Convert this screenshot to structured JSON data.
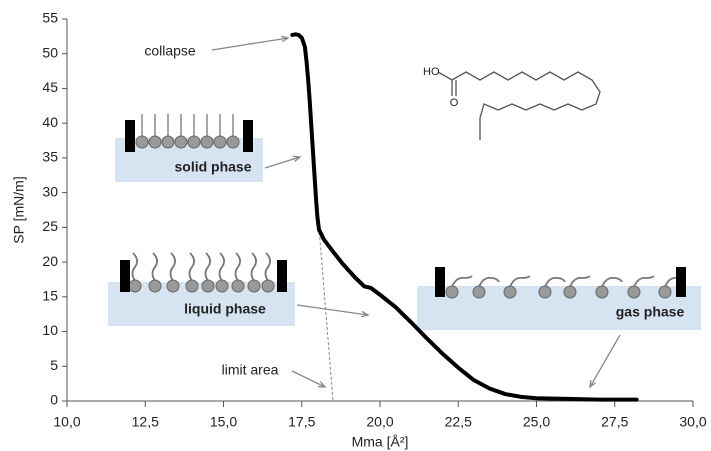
{
  "chart_data": {
    "type": "line",
    "x_label": "Mma [Å²]",
    "y_label": "SP [mN/m]",
    "x": [
      28.2,
      27.5,
      27.0,
      26.0,
      25.0,
      24.5,
      24.0,
      23.5,
      23.0,
      22.5,
      22.0,
      21.5,
      21.0,
      20.5,
      20.0,
      19.7,
      19.5,
      19.2,
      18.8,
      18.5,
      18.2,
      18.05,
      18.0,
      17.95,
      17.9,
      17.85,
      17.8,
      17.75,
      17.7,
      17.65,
      17.6,
      17.5,
      17.4,
      17.3,
      17.2
    ],
    "series": [
      {
        "color": "#000000",
        "values": [
          0.2,
          0.2,
          0.2,
          0.3,
          0.4,
          0.6,
          1.0,
          1.8,
          3.0,
          4.8,
          6.8,
          9.0,
          11.3,
          13.5,
          15.3,
          16.3,
          16.5,
          17.8,
          19.8,
          21.5,
          23.3,
          24.7,
          26.5,
          29.5,
          33,
          36.5,
          40,
          43.5,
          46.5,
          49,
          51,
          52.3,
          52.7,
          52.8,
          52.7
        ]
      }
    ],
    "limit_line": {
      "x": [
        18.05,
        18.5
      ],
      "values": [
        25,
        0
      ],
      "color": "#888888"
    },
    "xlim": [
      10,
      30
    ],
    "ylim": [
      0,
      55
    ],
    "xticks": [
      {
        "value": 10,
        "label": "10,0"
      },
      {
        "value": 12.5,
        "label": "12,5"
      },
      {
        "value": 15,
        "label": "15,0"
      },
      {
        "value": 17.5,
        "label": "17,5"
      },
      {
        "value": 20,
        "label": "20,0"
      },
      {
        "value": 22.5,
        "label": "22,5"
      },
      {
        "value": 25,
        "label": "25,0"
      },
      {
        "value": 27.5,
        "label": "27,5"
      },
      {
        "value": 30,
        "label": "30,0"
      }
    ],
    "yticks": [
      0,
      5,
      10,
      15,
      20,
      25,
      30,
      35,
      40,
      45,
      50,
      55
    ],
    "grid": false,
    "annotations": [
      "collapse",
      "solid phase",
      "liquid phase",
      "gas phase",
      "limit area"
    ],
    "structure_labels": [
      "HO",
      "O"
    ]
  }
}
